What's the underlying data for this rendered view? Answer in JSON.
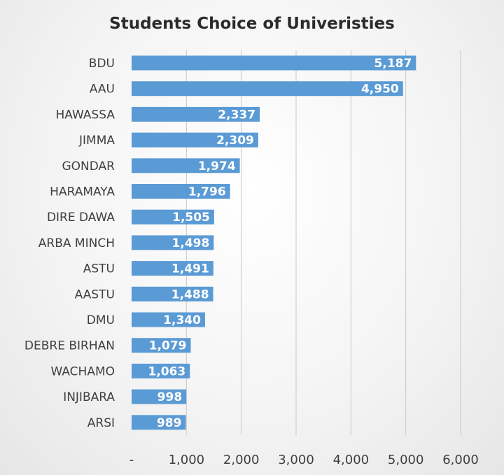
{
  "chart_data": {
    "type": "bar",
    "orientation": "horizontal",
    "title": "Students Choice of Univeristies",
    "xlabel": "",
    "ylabel": "",
    "categories": [
      "BDU",
      "AAU",
      "HAWASSA",
      "JIMMA",
      "GONDAR",
      "HARAMAYA",
      "DIRE DAWA",
      "ARBA MINCH",
      "ASTU",
      "AASTU",
      "DMU",
      "DEBRE BIRHAN",
      "WACHAMO",
      "INJIBARA",
      "ARSI"
    ],
    "values": [
      5187,
      4950,
      2337,
      2309,
      1974,
      1796,
      1505,
      1498,
      1491,
      1488,
      1340,
      1079,
      1063,
      998,
      989
    ],
    "value_labels": [
      "5,187",
      "4,950",
      "2,337",
      "2,309",
      "1,974",
      "1,796",
      "1,505",
      "1,498",
      "1,491",
      "1,488",
      "1,340",
      "1,079",
      "1,063",
      "998",
      "989"
    ],
    "xlim": [
      0,
      6000
    ],
    "xticks": [
      0,
      1000,
      2000,
      3000,
      4000,
      5000,
      6000
    ],
    "xtick_labels": [
      "-",
      "1,000",
      "2,000",
      "3,000",
      "4,000",
      "5,000",
      "6,000"
    ],
    "grid": true,
    "legend": "none",
    "bar_color": "#5b9bd5"
  }
}
